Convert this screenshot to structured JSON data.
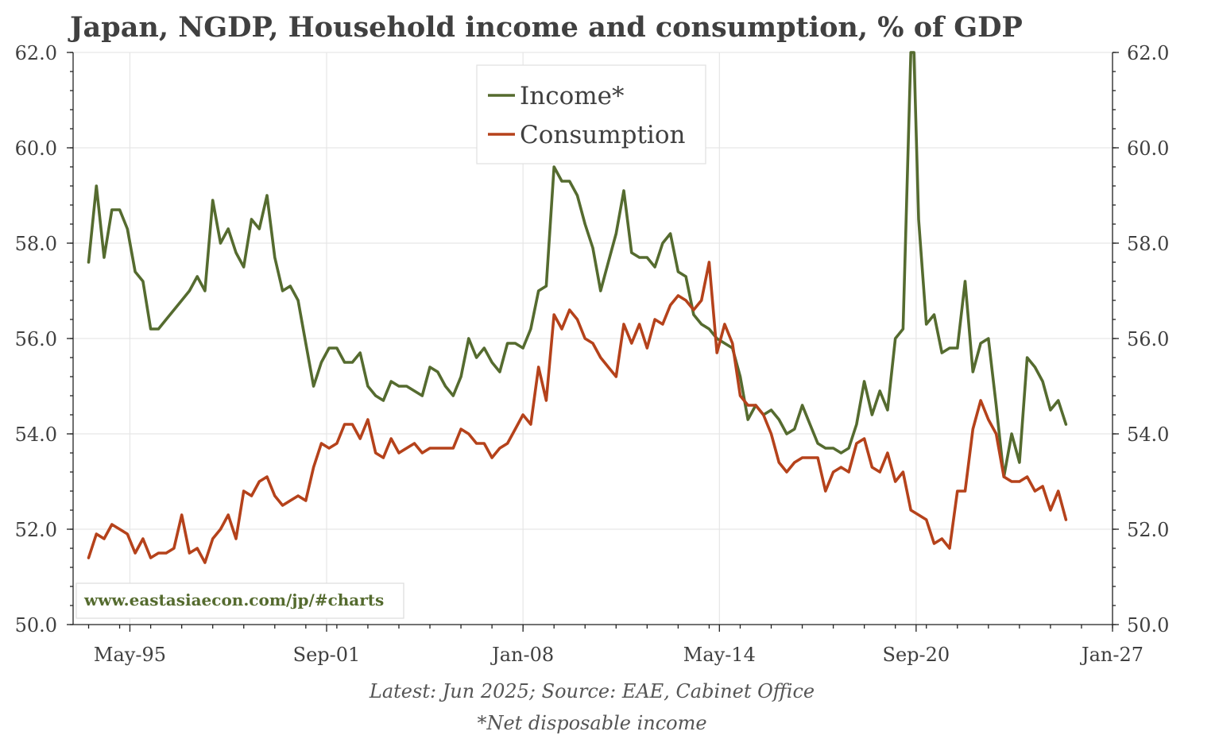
{
  "chart_data": {
    "type": "line",
    "title": "Japan, NGDP, Household income and consumption, % of GDP",
    "ylim": [
      50,
      62
    ],
    "yticks": [
      50,
      52,
      54,
      56,
      58,
      60,
      62
    ],
    "ytick_labels": [
      "50.0",
      "52.0",
      "54.0",
      "56.0",
      "58.0",
      "60.0",
      "62.0"
    ],
    "xlim": [
      1993.5,
      2027.0
    ],
    "xticks": [
      {
        "label": "May-95",
        "value": 1995.33
      },
      {
        "label": "Sep-01",
        "value": 2001.67
      },
      {
        "label": "Jan-08",
        "value": 2008.0
      },
      {
        "label": "May-14",
        "value": 2014.33
      },
      {
        "label": "Sep-20",
        "value": 2020.67
      },
      {
        "label": "Jan-27",
        "value": 2027.0
      }
    ],
    "legend_position": "top-center",
    "grid": true,
    "series": [
      {
        "name": "Income*",
        "color": "#556b2f",
        "points": [
          [
            1994.0,
            57.6
          ],
          [
            1994.25,
            59.2
          ],
          [
            1994.5,
            57.7
          ],
          [
            1994.75,
            58.7
          ],
          [
            1995.0,
            58.7
          ],
          [
            1995.25,
            58.3
          ],
          [
            1995.5,
            57.4
          ],
          [
            1995.75,
            57.2
          ],
          [
            1996.0,
            56.2
          ],
          [
            1996.25,
            56.2
          ],
          [
            1996.5,
            56.4
          ],
          [
            1996.75,
            56.6
          ],
          [
            1997.0,
            56.8
          ],
          [
            1997.25,
            57.0
          ],
          [
            1997.5,
            57.3
          ],
          [
            1997.75,
            57.0
          ],
          [
            1998.0,
            58.9
          ],
          [
            1998.25,
            58.0
          ],
          [
            1998.5,
            58.3
          ],
          [
            1998.75,
            57.8
          ],
          [
            1999.0,
            57.5
          ],
          [
            1999.25,
            58.5
          ],
          [
            1999.5,
            58.3
          ],
          [
            1999.75,
            59.0
          ],
          [
            2000.0,
            57.7
          ],
          [
            2000.25,
            57.0
          ],
          [
            2000.5,
            57.1
          ],
          [
            2000.75,
            56.8
          ],
          [
            2001.0,
            55.9
          ],
          [
            2001.25,
            55.0
          ],
          [
            2001.5,
            55.5
          ],
          [
            2001.75,
            55.8
          ],
          [
            2002.0,
            55.8
          ],
          [
            2002.25,
            55.5
          ],
          [
            2002.5,
            55.5
          ],
          [
            2002.75,
            55.7
          ],
          [
            2003.0,
            55.0
          ],
          [
            2003.25,
            54.8
          ],
          [
            2003.5,
            54.7
          ],
          [
            2003.75,
            55.1
          ],
          [
            2004.0,
            55.0
          ],
          [
            2004.25,
            55.0
          ],
          [
            2004.5,
            54.9
          ],
          [
            2004.75,
            54.8
          ],
          [
            2005.0,
            55.4
          ],
          [
            2005.25,
            55.3
          ],
          [
            2005.5,
            55.0
          ],
          [
            2005.75,
            54.8
          ],
          [
            2006.0,
            55.2
          ],
          [
            2006.25,
            56.0
          ],
          [
            2006.5,
            55.6
          ],
          [
            2006.75,
            55.8
          ],
          [
            2007.0,
            55.5
          ],
          [
            2007.25,
            55.3
          ],
          [
            2007.5,
            55.9
          ],
          [
            2007.75,
            55.9
          ],
          [
            2008.0,
            55.8
          ],
          [
            2008.25,
            56.2
          ],
          [
            2008.5,
            57.0
          ],
          [
            2008.75,
            57.1
          ],
          [
            2009.0,
            59.6
          ],
          [
            2009.25,
            59.3
          ],
          [
            2009.5,
            59.3
          ],
          [
            2009.75,
            59.0
          ],
          [
            2010.0,
            58.4
          ],
          [
            2010.25,
            57.9
          ],
          [
            2010.5,
            57.0
          ],
          [
            2010.75,
            57.6
          ],
          [
            2011.0,
            58.2
          ],
          [
            2011.25,
            59.1
          ],
          [
            2011.5,
            57.8
          ],
          [
            2011.75,
            57.7
          ],
          [
            2012.0,
            57.7
          ],
          [
            2012.25,
            57.5
          ],
          [
            2012.5,
            58.0
          ],
          [
            2012.75,
            58.2
          ],
          [
            2013.0,
            57.4
          ],
          [
            2013.25,
            57.3
          ],
          [
            2013.5,
            56.5
          ],
          [
            2013.75,
            56.3
          ],
          [
            2014.0,
            56.2
          ],
          [
            2014.25,
            56.0
          ],
          [
            2014.5,
            55.9
          ],
          [
            2014.75,
            55.8
          ],
          [
            2015.0,
            55.2
          ],
          [
            2015.25,
            54.3
          ],
          [
            2015.5,
            54.6
          ],
          [
            2015.75,
            54.4
          ],
          [
            2016.0,
            54.5
          ],
          [
            2016.25,
            54.3
          ],
          [
            2016.5,
            54.0
          ],
          [
            2016.75,
            54.1
          ],
          [
            2017.0,
            54.6
          ],
          [
            2017.25,
            54.2
          ],
          [
            2017.5,
            53.8
          ],
          [
            2017.75,
            53.7
          ],
          [
            2018.0,
            53.7
          ],
          [
            2018.25,
            53.6
          ],
          [
            2018.5,
            53.7
          ],
          [
            2018.75,
            54.2
          ],
          [
            2019.0,
            55.1
          ],
          [
            2019.25,
            54.4
          ],
          [
            2019.5,
            54.9
          ],
          [
            2019.75,
            54.5
          ],
          [
            2020.0,
            56.0
          ],
          [
            2020.25,
            56.2
          ],
          [
            2020.5,
            62.0
          ],
          [
            2020.6,
            62.0
          ],
          [
            2020.75,
            58.5
          ],
          [
            2021.0,
            56.3
          ],
          [
            2021.25,
            56.5
          ],
          [
            2021.5,
            55.7
          ],
          [
            2021.75,
            55.8
          ],
          [
            2022.0,
            55.8
          ],
          [
            2022.25,
            57.2
          ],
          [
            2022.5,
            55.3
          ],
          [
            2022.75,
            55.9
          ],
          [
            2023.0,
            56.0
          ],
          [
            2023.25,
            54.6
          ],
          [
            2023.5,
            53.1
          ],
          [
            2023.75,
            54.0
          ],
          [
            2024.0,
            53.4
          ],
          [
            2024.25,
            55.6
          ],
          [
            2024.5,
            55.4
          ],
          [
            2024.75,
            55.1
          ],
          [
            2025.0,
            54.5
          ],
          [
            2025.25,
            54.7
          ],
          [
            2025.5,
            54.2
          ]
        ]
      },
      {
        "name": "Consumption",
        "color": "#b5421b",
        "points": [
          [
            1994.0,
            51.4
          ],
          [
            1994.25,
            51.9
          ],
          [
            1994.5,
            51.8
          ],
          [
            1994.75,
            52.1
          ],
          [
            1995.0,
            52.0
          ],
          [
            1995.25,
            51.9
          ],
          [
            1995.5,
            51.5
          ],
          [
            1995.75,
            51.8
          ],
          [
            1996.0,
            51.4
          ],
          [
            1996.25,
            51.5
          ],
          [
            1996.5,
            51.5
          ],
          [
            1996.75,
            51.6
          ],
          [
            1997.0,
            52.3
          ],
          [
            1997.25,
            51.5
          ],
          [
            1997.5,
            51.6
          ],
          [
            1997.75,
            51.3
          ],
          [
            1998.0,
            51.8
          ],
          [
            1998.25,
            52.0
          ],
          [
            1998.5,
            52.3
          ],
          [
            1998.75,
            51.8
          ],
          [
            1999.0,
            52.8
          ],
          [
            1999.25,
            52.7
          ],
          [
            1999.5,
            53.0
          ],
          [
            1999.75,
            53.1
          ],
          [
            2000.0,
            52.7
          ],
          [
            2000.25,
            52.5
          ],
          [
            2000.5,
            52.6
          ],
          [
            2000.75,
            52.7
          ],
          [
            2001.0,
            52.6
          ],
          [
            2001.25,
            53.3
          ],
          [
            2001.5,
            53.8
          ],
          [
            2001.75,
            53.7
          ],
          [
            2002.0,
            53.8
          ],
          [
            2002.25,
            54.2
          ],
          [
            2002.5,
            54.2
          ],
          [
            2002.75,
            53.9
          ],
          [
            2003.0,
            54.3
          ],
          [
            2003.25,
            53.6
          ],
          [
            2003.5,
            53.5
          ],
          [
            2003.75,
            53.9
          ],
          [
            2004.0,
            53.6
          ],
          [
            2004.25,
            53.7
          ],
          [
            2004.5,
            53.8
          ],
          [
            2004.75,
            53.6
          ],
          [
            2005.0,
            53.7
          ],
          [
            2005.25,
            53.7
          ],
          [
            2005.5,
            53.7
          ],
          [
            2005.75,
            53.7
          ],
          [
            2006.0,
            54.1
          ],
          [
            2006.25,
            54.0
          ],
          [
            2006.5,
            53.8
          ],
          [
            2006.75,
            53.8
          ],
          [
            2007.0,
            53.5
          ],
          [
            2007.25,
            53.7
          ],
          [
            2007.5,
            53.8
          ],
          [
            2007.75,
            54.1
          ],
          [
            2008.0,
            54.4
          ],
          [
            2008.25,
            54.2
          ],
          [
            2008.5,
            55.4
          ],
          [
            2008.75,
            54.7
          ],
          [
            2009.0,
            56.5
          ],
          [
            2009.25,
            56.2
          ],
          [
            2009.5,
            56.6
          ],
          [
            2009.75,
            56.4
          ],
          [
            2010.0,
            56.0
          ],
          [
            2010.25,
            55.9
          ],
          [
            2010.5,
            55.6
          ],
          [
            2010.75,
            55.4
          ],
          [
            2011.0,
            55.2
          ],
          [
            2011.25,
            56.3
          ],
          [
            2011.5,
            55.9
          ],
          [
            2011.75,
            56.3
          ],
          [
            2012.0,
            55.8
          ],
          [
            2012.25,
            56.4
          ],
          [
            2012.5,
            56.3
          ],
          [
            2012.75,
            56.7
          ],
          [
            2013.0,
            56.9
          ],
          [
            2013.25,
            56.8
          ],
          [
            2013.5,
            56.6
          ],
          [
            2013.75,
            56.8
          ],
          [
            2014.0,
            57.6
          ],
          [
            2014.25,
            55.7
          ],
          [
            2014.5,
            56.3
          ],
          [
            2014.75,
            55.9
          ],
          [
            2015.0,
            54.8
          ],
          [
            2015.25,
            54.6
          ],
          [
            2015.5,
            54.6
          ],
          [
            2015.75,
            54.4
          ],
          [
            2016.0,
            54.0
          ],
          [
            2016.25,
            53.4
          ],
          [
            2016.5,
            53.2
          ],
          [
            2016.75,
            53.4
          ],
          [
            2017.0,
            53.5
          ],
          [
            2017.25,
            53.5
          ],
          [
            2017.5,
            53.5
          ],
          [
            2017.75,
            52.8
          ],
          [
            2018.0,
            53.2
          ],
          [
            2018.25,
            53.3
          ],
          [
            2018.5,
            53.2
          ],
          [
            2018.75,
            53.8
          ],
          [
            2019.0,
            53.9
          ],
          [
            2019.25,
            53.3
          ],
          [
            2019.5,
            53.2
          ],
          [
            2019.75,
            53.6
          ],
          [
            2020.0,
            53.0
          ],
          [
            2020.25,
            53.2
          ],
          [
            2020.5,
            52.4
          ],
          [
            2020.75,
            52.3
          ],
          [
            2021.0,
            52.2
          ],
          [
            2021.25,
            51.7
          ],
          [
            2021.5,
            51.8
          ],
          [
            2021.75,
            51.6
          ],
          [
            2022.0,
            52.8
          ],
          [
            2022.25,
            52.8
          ],
          [
            2022.5,
            54.1
          ],
          [
            2022.75,
            54.7
          ],
          [
            2023.0,
            54.3
          ],
          [
            2023.25,
            54.0
          ],
          [
            2023.5,
            53.1
          ],
          [
            2023.75,
            53.0
          ],
          [
            2024.0,
            53.0
          ],
          [
            2024.25,
            53.1
          ],
          [
            2024.5,
            52.8
          ],
          [
            2024.75,
            52.9
          ],
          [
            2025.0,
            52.4
          ],
          [
            2025.25,
            52.8
          ],
          [
            2025.5,
            52.2
          ]
        ]
      }
    ],
    "watermark": "www.eastasiaecon.com/jp/#charts",
    "watermark_color": "#556b2f",
    "footer_line1": "Latest: Jun 2025; Source: EAE, Cabinet Office",
    "footer_line2": "*Net disposable income"
  }
}
